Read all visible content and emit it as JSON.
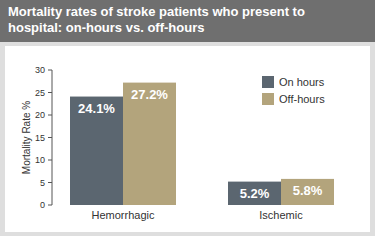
{
  "chart_data": {
    "type": "bar",
    "title": "Mortality rates of stroke patients who present to hospital: on-hours vs. off-hours",
    "categories": [
      "Hemorrhagic",
      "Ischemic"
    ],
    "series": [
      {
        "name": "On hours",
        "color": "#5b6670",
        "values": [
          24.1,
          5.2
        ],
        "value_labels": [
          "24.1%",
          "5.2%"
        ]
      },
      {
        "name": "Off-hours",
        "color": "#b3a47c",
        "values": [
          27.2,
          5.8
        ],
        "value_labels": [
          "27.2%",
          "5.8%"
        ]
      }
    ],
    "y_label": "Mortality Rate %",
    "ylim": [
      0,
      30
    ],
    "yticks": [
      0,
      5,
      10,
      15,
      20,
      25,
      30
    ],
    "grid": false,
    "legend": "top-right",
    "data_labels": true
  }
}
